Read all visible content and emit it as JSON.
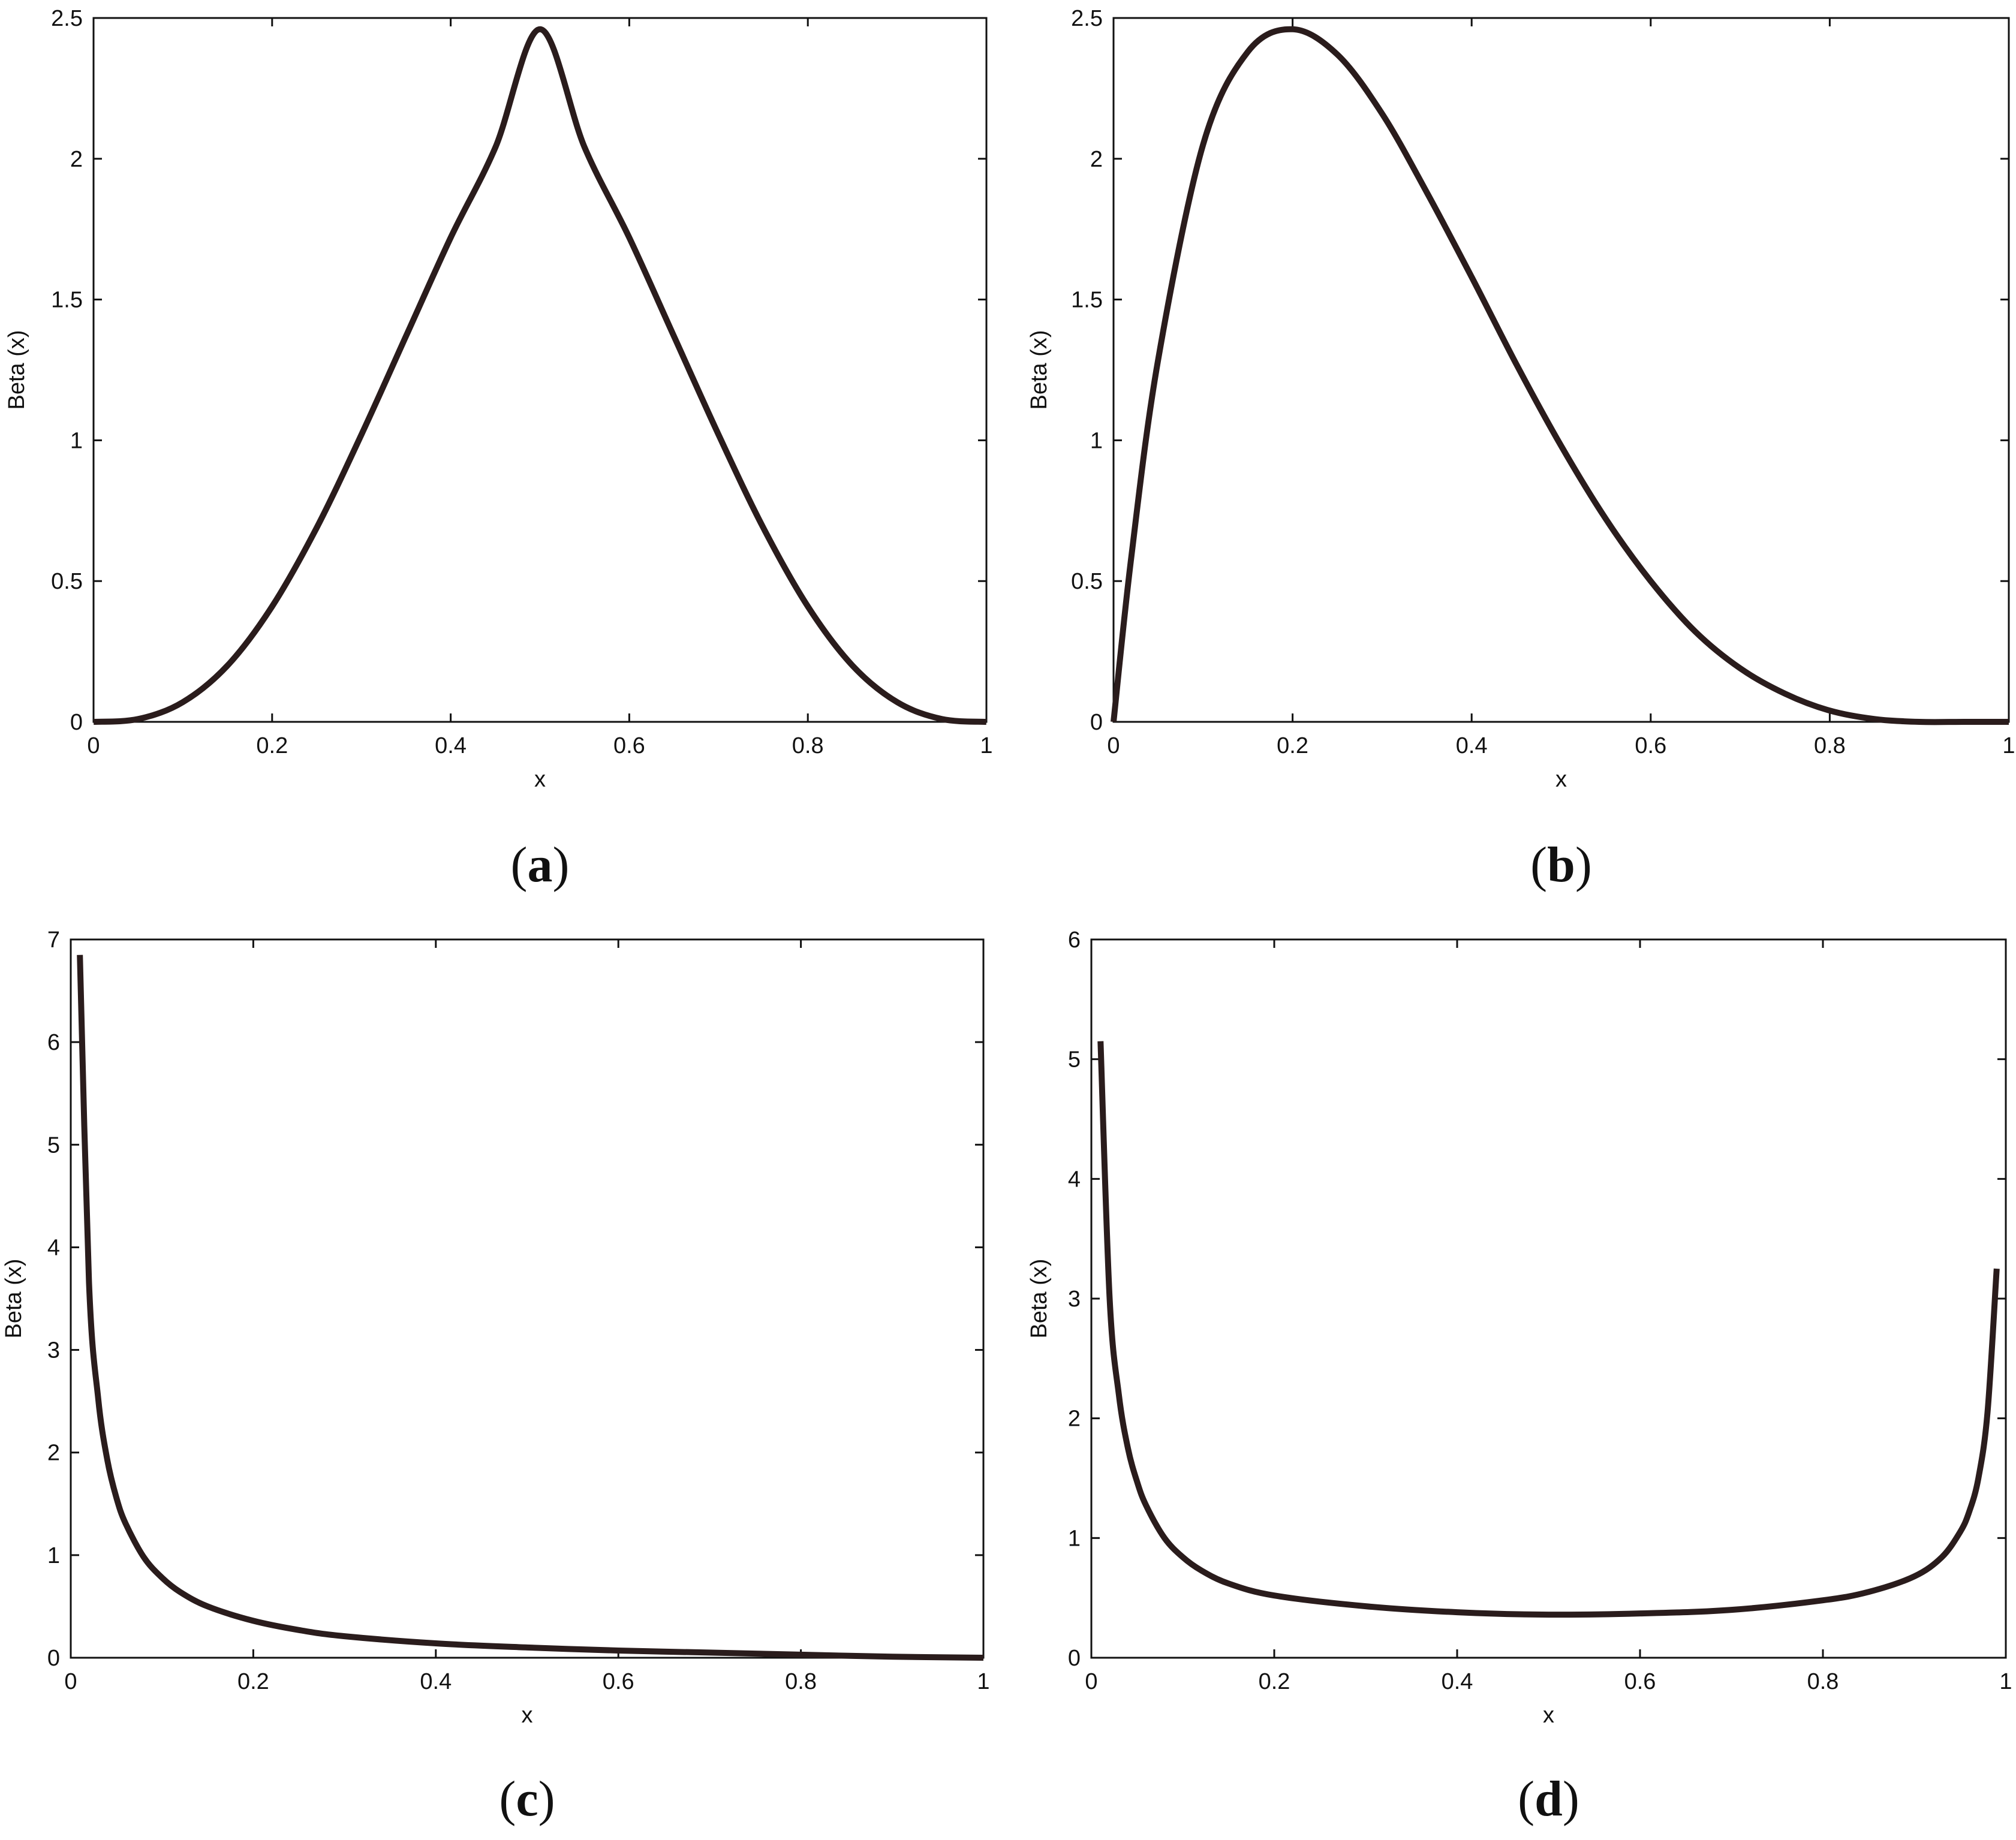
{
  "chart_data": [
    {
      "panel": "a",
      "caption": {
        "open": "(",
        "letter": "a",
        "close": ")"
      },
      "type": "line",
      "xlabel": "x",
      "ylabel": "Beta (x)",
      "xlim": [
        0,
        1
      ],
      "ylim": [
        0,
        2.5
      ],
      "xticks": [
        "0",
        "0.2",
        "0.4",
        "0.6",
        "0.8",
        "1"
      ],
      "yticks": [
        "0",
        "0.5",
        "1",
        "1.5",
        "2",
        "2.5"
      ],
      "grid": false,
      "color": "#2a1c1c",
      "x": [
        0,
        0.05,
        0.1,
        0.15,
        0.2,
        0.25,
        0.3,
        0.35,
        0.4,
        0.45,
        0.5,
        0.55,
        0.6,
        0.65,
        0.7,
        0.75,
        0.8,
        0.85,
        0.9,
        0.95,
        1
      ],
      "y": [
        0,
        0.01,
        0.07,
        0.2,
        0.41,
        0.69,
        1.02,
        1.37,
        1.72,
        2.04,
        2.46,
        2.04,
        1.72,
        1.37,
        1.02,
        0.69,
        0.41,
        0.2,
        0.07,
        0.01,
        0
      ]
    },
    {
      "panel": "b",
      "caption": {
        "open": "(",
        "letter": "b",
        "close": ")"
      },
      "type": "line",
      "xlabel": "x",
      "ylabel": "Beta (x)",
      "xlim": [
        0,
        1
      ],
      "ylim": [
        0,
        2.5
      ],
      "xticks": [
        "0",
        "0.2",
        "0.4",
        "0.6",
        "0.8",
        "1"
      ],
      "yticks": [
        "0",
        "0.5",
        "1",
        "1.5",
        "2",
        "2.5"
      ],
      "grid": false,
      "color": "#2a1c1c",
      "x": [
        0,
        0.02,
        0.05,
        0.1,
        0.15,
        0.2,
        0.25,
        0.3,
        0.35,
        0.4,
        0.45,
        0.5,
        0.55,
        0.6,
        0.65,
        0.7,
        0.75,
        0.8,
        0.85,
        0.9,
        0.95,
        1
      ],
      "y": [
        0,
        0.59,
        1.29,
        2.05,
        2.38,
        2.46,
        2.37,
        2.16,
        1.88,
        1.58,
        1.27,
        0.98,
        0.72,
        0.5,
        0.32,
        0.19,
        0.1,
        0.04,
        0.01,
        0,
        0,
        0
      ]
    },
    {
      "panel": "c",
      "caption": {
        "open": "(",
        "letter": "c",
        "close": ")"
      },
      "type": "line",
      "xlabel": "x",
      "ylabel": "Beta (x)",
      "xlim": [
        0,
        1
      ],
      "ylim": [
        0,
        7
      ],
      "xticks": [
        "0",
        "0.2",
        "0.4",
        "0.6",
        "0.8",
        "1"
      ],
      "yticks": [
        "0",
        "1",
        "2",
        "3",
        "4",
        "5",
        "6",
        "7"
      ],
      "grid": false,
      "color": "#2a1c1c",
      "x": [
        0.01,
        0.02,
        0.03,
        0.04,
        0.05,
        0.06,
        0.08,
        0.1,
        0.12,
        0.15,
        0.2,
        0.25,
        0.3,
        0.4,
        0.5,
        0.6,
        0.7,
        0.8,
        0.9,
        1
      ],
      "y": [
        6.85,
        3.66,
        2.53,
        1.93,
        1.56,
        1.31,
        0.98,
        0.78,
        0.64,
        0.5,
        0.36,
        0.27,
        0.21,
        0.14,
        0.1,
        0.07,
        0.05,
        0.03,
        0.01,
        0
      ]
    },
    {
      "panel": "d",
      "caption": {
        "open": "(",
        "letter": "d",
        "close": ")"
      },
      "type": "line",
      "xlabel": "x",
      "ylabel": "Beta (x)",
      "xlim": [
        0,
        1
      ],
      "ylim": [
        0,
        6
      ],
      "xticks": [
        "0",
        "0.2",
        "0.4",
        "0.6",
        "0.8",
        "1"
      ],
      "yticks": [
        "0",
        "1",
        "2",
        "3",
        "4",
        "5",
        "6"
      ],
      "grid": false,
      "color": "#2a1c1c",
      "x": [
        0.01,
        0.02,
        0.03,
        0.04,
        0.05,
        0.06,
        0.08,
        0.1,
        0.12,
        0.15,
        0.2,
        0.3,
        0.4,
        0.5,
        0.6,
        0.7,
        0.8,
        0.85,
        0.9,
        0.93,
        0.95,
        0.96,
        0.97,
        0.98,
        0.99
      ],
      "y": [
        5.15,
        3.0,
        2.2,
        1.75,
        1.47,
        1.27,
        1.0,
        0.84,
        0.73,
        0.62,
        0.52,
        0.43,
        0.38,
        0.36,
        0.37,
        0.4,
        0.48,
        0.55,
        0.68,
        0.84,
        1.05,
        1.22,
        1.5,
        2.05,
        3.25
      ]
    }
  ]
}
